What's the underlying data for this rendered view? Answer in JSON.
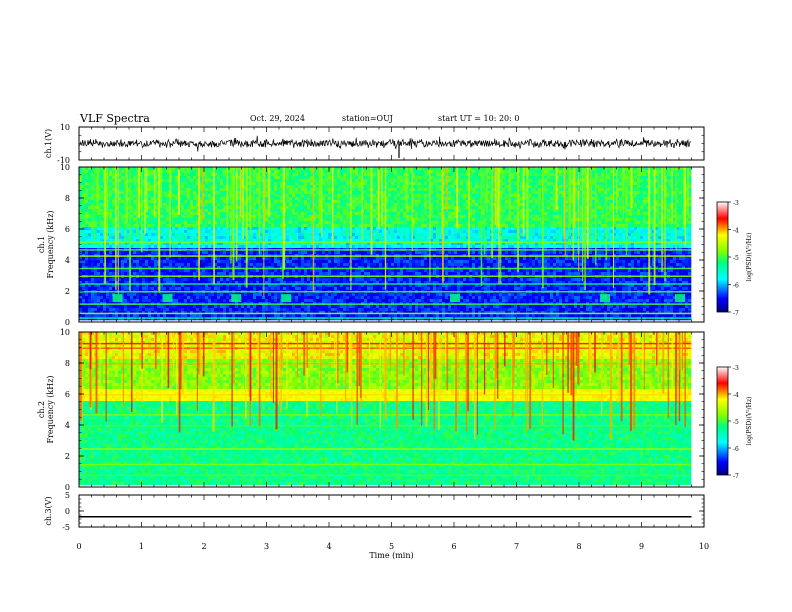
{
  "header": {
    "title": "VLF Spectra",
    "date": "Oct. 29, 2024",
    "station": "station=OUJ",
    "start_ut": "start  UT =   10: 20: 0"
  },
  "chart_data": [
    {
      "type": "line",
      "panel": "ch1-waveform",
      "ylabel": "ch.1(V)",
      "ylim": [
        -10,
        10
      ],
      "yticks": [
        "10",
        "-10"
      ],
      "xlim": [
        0,
        10
      ],
      "x_range_data": [
        0,
        9.8
      ],
      "trace_color": "#000000",
      "mean": 0
    },
    {
      "type": "heatmap",
      "panel": "ch1-spectrogram",
      "ylabel": "ch.1\nFrequency (kHz)",
      "ylim": [
        0,
        10
      ],
      "yticks": [
        "0",
        "2",
        "4",
        "6",
        "8",
        "10"
      ],
      "xlim": [
        0,
        10
      ],
      "x_range_data": [
        0,
        9.8
      ],
      "colorbar": {
        "label": "log(PSD)(V²/Hz)",
        "range": [
          -7,
          -3
        ],
        "ticks": [
          "-3",
          "-4",
          "-5",
          "-6",
          "-7"
        ]
      }
    },
    {
      "type": "heatmap",
      "panel": "ch2-spectrogram",
      "ylabel": "ch.2\nFrequency (kHz)",
      "ylim": [
        0,
        10
      ],
      "yticks": [
        "0",
        "2",
        "4",
        "6",
        "8",
        "10"
      ],
      "xlim": [
        0,
        10
      ],
      "x_range_data": [
        0,
        9.8
      ],
      "colorbar": {
        "label": "log(PSD)(V²/Hz)",
        "range": [
          -7,
          -3
        ],
        "ticks": [
          "-3",
          "-4",
          "-5",
          "-6",
          "-7"
        ]
      }
    },
    {
      "type": "line",
      "panel": "ch3-waveform",
      "ylabel": "ch.3(V)",
      "ylim": [
        -5,
        5
      ],
      "yticks": [
        "5",
        "0",
        "-5"
      ],
      "xlim": [
        0,
        10
      ],
      "x_range_data": [
        0,
        9.8
      ],
      "trace_color": "#000000",
      "constant_value": -1.8
    }
  ],
  "xaxis": {
    "label": "Time  (min)",
    "ticks": [
      "0",
      "1",
      "2",
      "3",
      "4",
      "5",
      "6",
      "7",
      "8",
      "9",
      "10"
    ]
  }
}
